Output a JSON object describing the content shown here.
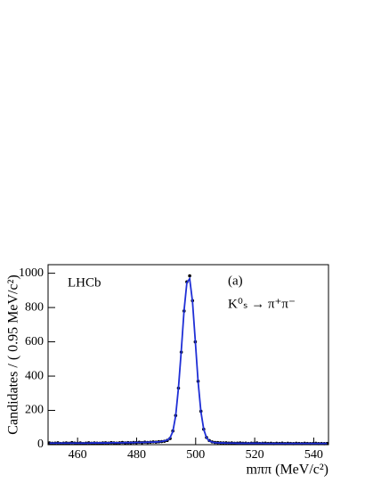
{
  "chart_data": {
    "type": "scatter",
    "x_label": "mππ (MeV/c²)",
    "y_label": "Candidates / ( 0.95 MeV/c²)",
    "annotations": [
      "LHCb",
      "(a)",
      "K⁰ₛ → π⁺π⁻"
    ],
    "x": [
      450.475,
      451.425,
      452.375,
      453.325,
      454.275,
      455.225,
      456.175,
      457.125,
      458.075,
      459.025,
      459.975,
      460.925,
      461.875,
      462.825,
      463.775,
      464.725,
      465.675,
      466.625,
      467.575,
      468.525,
      469.475,
      470.425,
      471.375,
      472.325,
      473.275,
      474.225,
      475.175,
      476.125,
      477.075,
      478.025,
      478.975,
      479.925,
      480.875,
      481.825,
      482.775,
      483.725,
      484.675,
      485.625,
      486.575,
      487.525,
      488.475,
      489.425,
      490.375,
      491.325,
      492.275,
      493.225,
      494.175,
      495.125,
      496.075,
      497.025,
      497.975,
      498.925,
      499.875,
      500.825,
      501.775,
      502.725,
      503.675,
      504.625,
      505.575,
      506.525,
      507.475,
      508.425,
      509.375,
      510.325,
      511.275,
      512.225,
      513.175,
      514.125,
      515.075,
      516.025,
      516.975,
      517.925,
      518.875,
      519.825,
      520.775,
      521.725,
      522.675,
      523.625,
      524.575,
      525.525,
      526.475,
      527.425,
      528.375,
      529.325,
      530.275,
      531.225,
      532.175,
      533.125,
      534.075,
      535.025,
      535.975,
      536.925,
      537.875,
      538.825,
      539.775,
      540.725,
      541.675,
      542.625,
      543.575,
      544.525
    ],
    "series": [
      {
        "mode": "points",
        "color": "#000000",
        "values": [
          10,
          8,
          9,
          11,
          7,
          9,
          10,
          8,
          12,
          9,
          8,
          10,
          7,
          9,
          11,
          8,
          10,
          9,
          8,
          10,
          11,
          9,
          12,
          10,
          9,
          11,
          13,
          10,
          12,
          11,
          13,
          12,
          14,
          12,
          15,
          13,
          14,
          16,
          15,
          17,
          18,
          20,
          25,
          36,
          80,
          170,
          330,
          540,
          780,
          950,
          985,
          840,
          600,
          370,
          195,
          90,
          42,
          24,
          16,
          13,
          12,
          11,
          10,
          11,
          9,
          10,
          8,
          9,
          10,
          8,
          9,
          7,
          9,
          8,
          10,
          7,
          8,
          9,
          7,
          8,
          6,
          8,
          7,
          9,
          6,
          8,
          7,
          6,
          8,
          7,
          6,
          8,
          7,
          6,
          7,
          8,
          6,
          7,
          6,
          7
        ]
      },
      {
        "mode": "line",
        "color": "#1f2fd6",
        "values": [
          9,
          9,
          9,
          9,
          9,
          9,
          9,
          9,
          9,
          9,
          9,
          9,
          9,
          9,
          9,
          10,
          10,
          10,
          10,
          10,
          10,
          10,
          11,
          11,
          11,
          11,
          11,
          12,
          12,
          12,
          12,
          13,
          13,
          13,
          14,
          14,
          15,
          15,
          16,
          17,
          19,
          22,
          27,
          40,
          77,
          168,
          332,
          548,
          783,
          945,
          968,
          835,
          605,
          368,
          193,
          90,
          40,
          22,
          15,
          12,
          11,
          10,
          10,
          9,
          9,
          9,
          9,
          8,
          8,
          8,
          8,
          8,
          8,
          8,
          8,
          8,
          8,
          7,
          7,
          7,
          7,
          7,
          7,
          7,
          7,
          7,
          7,
          7,
          7,
          7,
          7,
          7,
          7,
          7,
          7,
          7,
          7,
          7,
          7,
          7
        ]
      }
    ],
    "xlim": [
      450,
      545
    ],
    "ylim": [
      0,
      1050
    ],
    "xticks": [
      460,
      480,
      500,
      520,
      540
    ],
    "yticks": [
      0,
      200,
      400,
      600,
      800,
      1000
    ]
  }
}
